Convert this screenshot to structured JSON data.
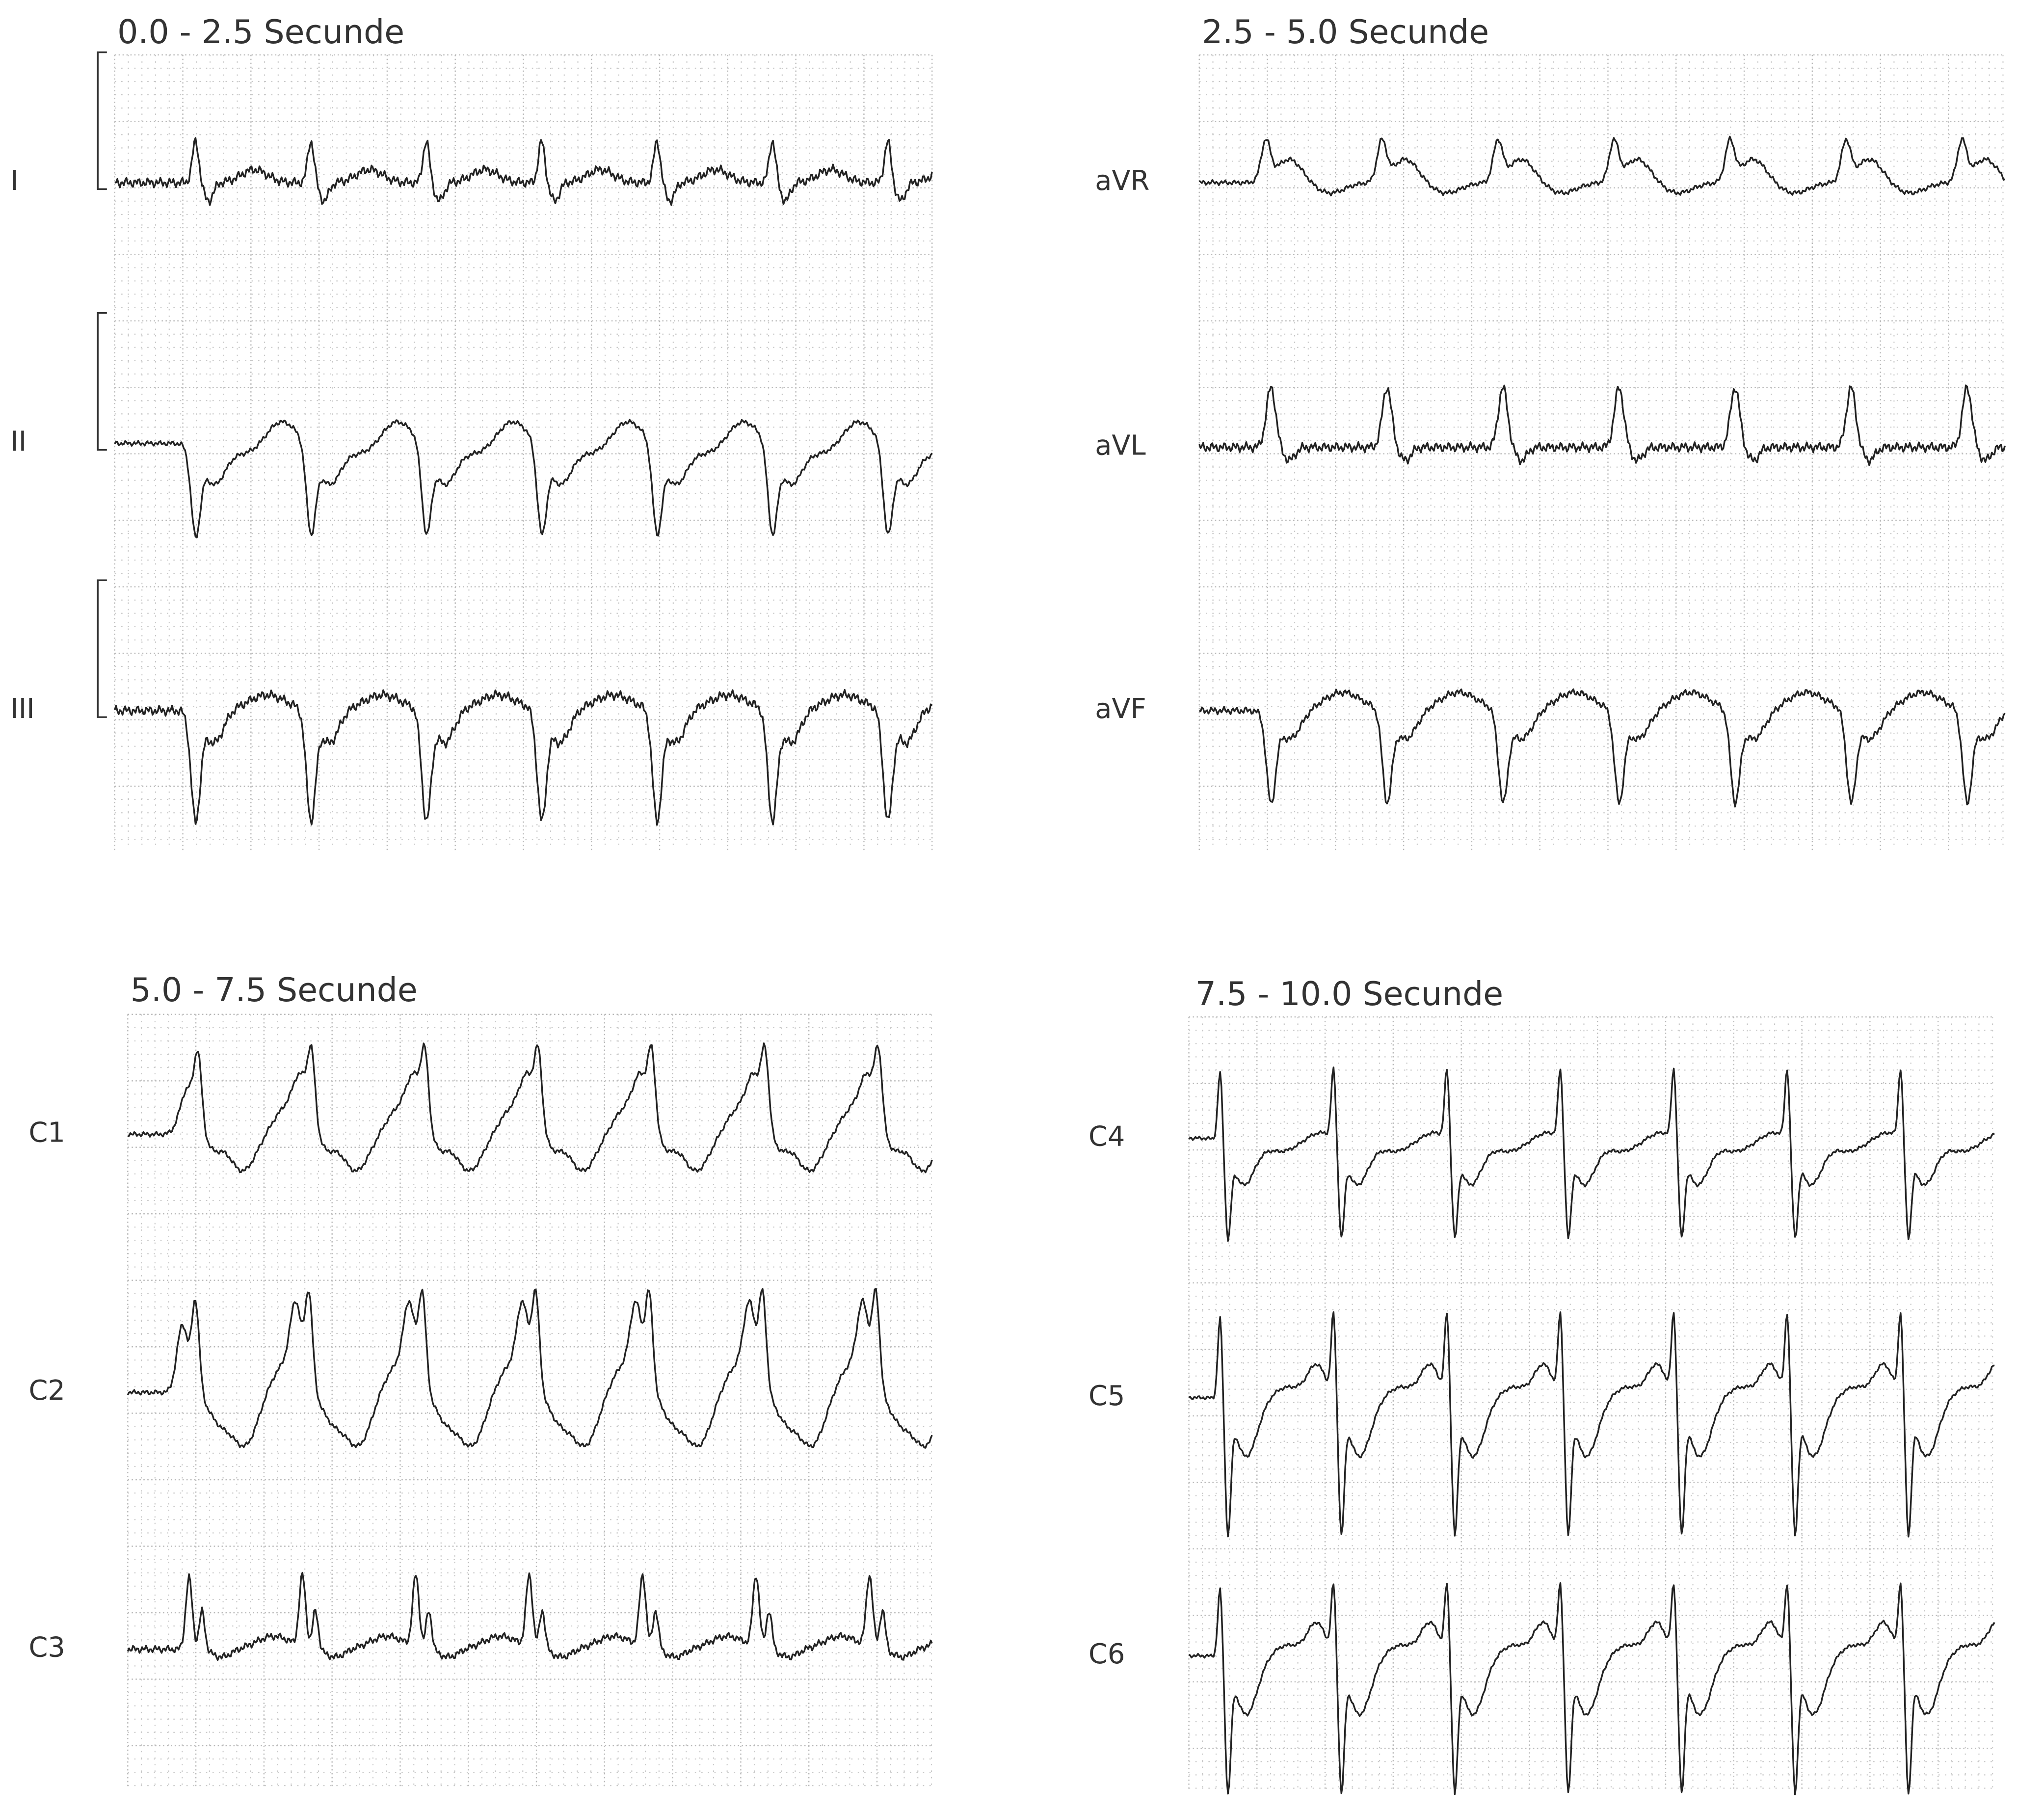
{
  "panels": [
    {
      "title": "0.0 - 2.5 Secunde",
      "leads": [
        "I",
        "II",
        "III"
      ]
    },
    {
      "title": "2.5 - 5.0 Secunde",
      "leads": [
        "aVR",
        "aVL",
        "aVF"
      ]
    },
    {
      "title": "5.0 - 7.5 Secunde",
      "leads": [
        "C1",
        "C2",
        "C3"
      ]
    },
    {
      "title": "7.5 - 10.0 Secunde",
      "leads": [
        "C4",
        "C5",
        "C6"
      ]
    }
  ]
}
